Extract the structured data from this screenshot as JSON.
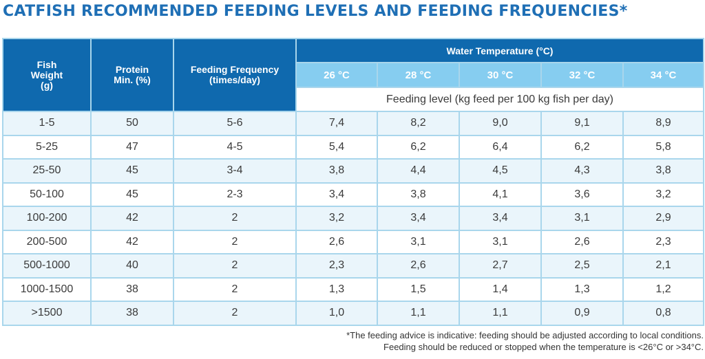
{
  "title": "CATFISH RECOMMENDED FEEDING LEVELS AND FEEDING FREQUENCIES*",
  "headers": {
    "fish_weight": [
      "Fish",
      "Weight",
      "(g)"
    ],
    "protein": [
      "Protein",
      "Min. (%)"
    ],
    "frequency": [
      "Feeding Frequency",
      "(times/day)"
    ],
    "water_temperature": "Water Temperature (°C)",
    "temperatures": [
      "26 °C",
      "28 °C",
      "30 °C",
      "32 °C",
      "34 °C"
    ],
    "feeding_level": "Feeding level (kg feed per 100 kg fish per day)"
  },
  "rows": [
    [
      "1-5",
      "50",
      "5-6",
      "7,4",
      "8,2",
      "9,0",
      "9,1",
      "8,9"
    ],
    [
      "5-25",
      "47",
      "4-5",
      "5,4",
      "6,2",
      "6,4",
      "6,2",
      "5,8"
    ],
    [
      "25-50",
      "45",
      "3-4",
      "3,8",
      "4,4",
      "4,5",
      "4,3",
      "3,8"
    ],
    [
      "50-100",
      "45",
      "2-3",
      "3,4",
      "3,8",
      "4,1",
      "3,6",
      "3,2"
    ],
    [
      "100-200",
      "42",
      "2",
      "3,2",
      "3,4",
      "3,4",
      "3,1",
      "2,9"
    ],
    [
      "200-500",
      "42",
      "2",
      "2,6",
      "3,1",
      "3,1",
      "2,6",
      "2,3"
    ],
    [
      "500-1000",
      "40",
      "2",
      "2,3",
      "2,6",
      "2,7",
      "2,5",
      "2,1"
    ],
    [
      "1000-1500",
      "38",
      "2",
      "1,3",
      "1,5",
      "1,4",
      "1,3",
      "1,2"
    ],
    [
      ">1500",
      "38",
      "2",
      "1,0",
      "1,1",
      "1,1",
      "0,9",
      "0,8"
    ]
  ],
  "footnote": [
    "*The feeding advice is indicative: feeding should be adjusted according to local conditions.",
    "Feeding should be reduced or stopped when the temperature is <26°C or >34°C."
  ],
  "colors": {
    "title": "#1f6fb5",
    "header_dark": "#0f69ae",
    "header_light": "#86cdf0",
    "border": "#a9d6ec",
    "row_alt": "#eaf5fb"
  }
}
